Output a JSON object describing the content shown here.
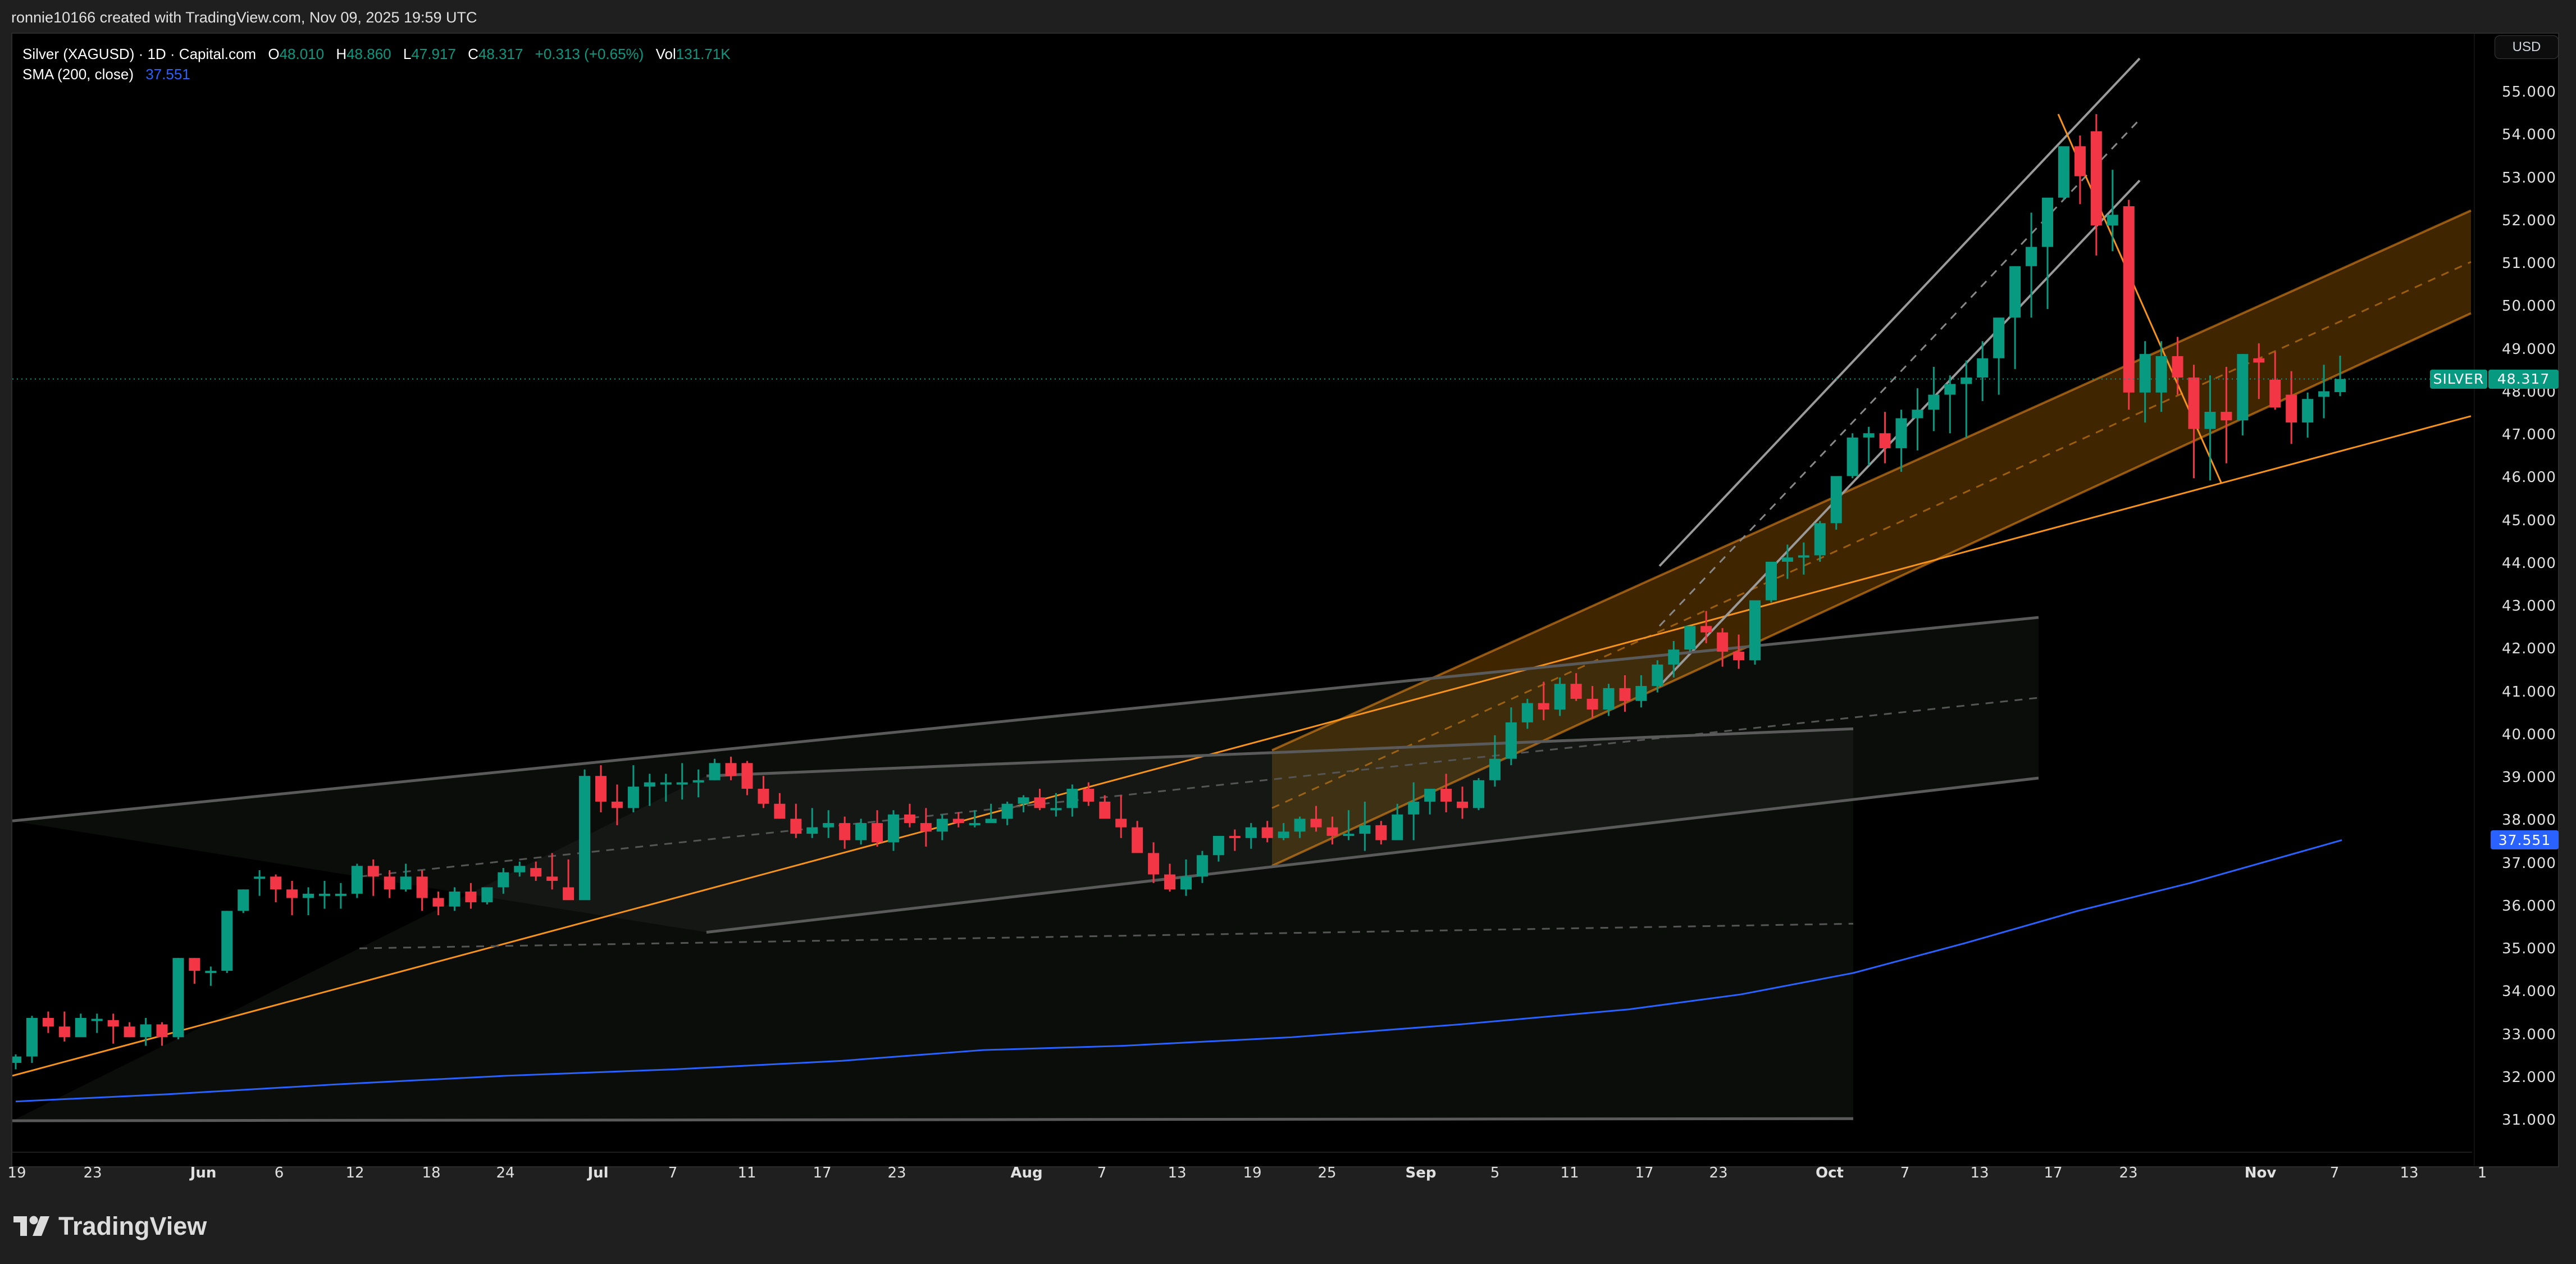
{
  "header": {
    "credit": "ronnie10166 created with TradingView.com, Nov 09, 2025 19:59 UTC"
  },
  "legend": {
    "symbol": "Silver (XAGUSD) · 1D · Capital.com",
    "open_label": "O",
    "open": "48.010",
    "high_label": "H",
    "high": "48.860",
    "low_label": "L",
    "low": "47.917",
    "close_label": "C",
    "close": "48.317",
    "change": "+0.313 (+0.65%)",
    "vol_label": "Vol",
    "vol": "131.71K",
    "sma_label": "SMA (200, close)",
    "sma_value": "37.551"
  },
  "price_axis": {
    "currency_button": "USD",
    "ticks": [
      "55.000",
      "54.000",
      "53.000",
      "52.000",
      "51.000",
      "50.000",
      "49.000",
      "48.000",
      "47.000",
      "46.000",
      "45.000",
      "44.000",
      "43.000",
      "42.000",
      "41.000",
      "40.000",
      "39.000",
      "38.000",
      "37.000",
      "36.000",
      "35.000",
      "34.000",
      "33.000",
      "32.000",
      "31.000"
    ],
    "last_price_tag": {
      "symbol": "SILVER",
      "value": "48.317",
      "color": "#089981"
    },
    "sma_tag": {
      "value": "37.551",
      "color": "#2962ff"
    }
  },
  "time_axis": {
    "labels": [
      {
        "text": "19",
        "x": 30,
        "month": false
      },
      {
        "text": "23",
        "x": 165,
        "month": false
      },
      {
        "text": "Jun",
        "x": 362,
        "month": true
      },
      {
        "text": "6",
        "x": 497,
        "month": false
      },
      {
        "text": "12",
        "x": 632,
        "month": false
      },
      {
        "text": "18",
        "x": 768,
        "month": false
      },
      {
        "text": "24",
        "x": 900,
        "month": false
      },
      {
        "text": "Jul",
        "x": 1065,
        "month": true
      },
      {
        "text": "7",
        "x": 1198,
        "month": false
      },
      {
        "text": "11",
        "x": 1330,
        "month": false
      },
      {
        "text": "17",
        "x": 1464,
        "month": false
      },
      {
        "text": "23",
        "x": 1597,
        "month": false
      },
      {
        "text": "Aug",
        "x": 1828,
        "month": true
      },
      {
        "text": "7",
        "x": 1962,
        "month": false
      },
      {
        "text": "13",
        "x": 2096,
        "month": false
      },
      {
        "text": "19",
        "x": 2230,
        "month": false
      },
      {
        "text": "25",
        "x": 2363,
        "month": false
      },
      {
        "text": "Sep",
        "x": 2530,
        "month": true
      },
      {
        "text": "5",
        "x": 2662,
        "month": false
      },
      {
        "text": "11",
        "x": 2795,
        "month": false
      },
      {
        "text": "17",
        "x": 2928,
        "month": false
      },
      {
        "text": "23",
        "x": 3060,
        "month": false
      },
      {
        "text": "Oct",
        "x": 3258,
        "month": true
      },
      {
        "text": "7",
        "x": 3392,
        "month": false
      },
      {
        "text": "13",
        "x": 3525,
        "month": false
      },
      {
        "text": "17",
        "x": 3656,
        "month": false
      },
      {
        "text": "23",
        "x": 3790,
        "month": false
      },
      {
        "text": "Nov",
        "x": 4025,
        "month": true
      },
      {
        "text": "7",
        "x": 4157,
        "month": false
      },
      {
        "text": "13",
        "x": 4290,
        "month": false
      },
      {
        "text": "1",
        "x": 4420,
        "month": false
      }
    ]
  },
  "colors": {
    "up": "#089981",
    "down": "#f23645",
    "sma": "#2962ff",
    "trend": "#f7931a",
    "channel_gray": "#6b6b6b",
    "orange_fill": "rgba(255,152,0,0.25)"
  },
  "footer": {
    "brand": "TradingView"
  },
  "chart_data": {
    "type": "candlestick",
    "title": "Silver (XAGUSD) · 1D · Capital.com",
    "xlabel": "",
    "ylabel": "USD",
    "ylim": [
      30.5,
      55.6
    ],
    "grid": false,
    "legend_position": "top-left",
    "first_date": "2025-05-19",
    "last_date": "2025-11-07",
    "ohlc": [
      [
        32.35,
        32.55,
        32.2,
        32.5
      ],
      [
        32.5,
        33.45,
        32.35,
        33.4
      ],
      [
        33.4,
        33.55,
        33.05,
        33.2
      ],
      [
        33.2,
        33.55,
        32.85,
        32.95
      ],
      [
        32.95,
        33.5,
        33.1,
        33.4
      ],
      [
        33.35,
        33.5,
        33.05,
        33.38
      ],
      [
        33.35,
        33.5,
        32.8,
        33.2
      ],
      [
        33.2,
        33.3,
        32.95,
        32.95
      ],
      [
        32.95,
        33.4,
        32.75,
        33.25
      ],
      [
        33.25,
        33.3,
        32.75,
        32.95
      ],
      [
        32.95,
        34.8,
        32.9,
        34.8
      ],
      [
        34.8,
        34.8,
        34.2,
        34.5
      ],
      [
        34.5,
        34.6,
        34.15,
        34.5
      ],
      [
        34.5,
        35.9,
        34.45,
        35.9
      ],
      [
        35.9,
        36.4,
        35.85,
        36.4
      ],
      [
        36.7,
        36.85,
        36.25,
        36.7
      ],
      [
        36.7,
        36.75,
        36.1,
        36.4
      ],
      [
        36.4,
        36.6,
        35.8,
        36.2
      ],
      [
        36.2,
        36.45,
        35.8,
        36.3
      ],
      [
        36.3,
        36.6,
        35.95,
        36.3
      ],
      [
        36.3,
        36.55,
        35.95,
        36.3
      ],
      [
        36.3,
        37.0,
        36.2,
        36.95
      ],
      [
        36.95,
        37.1,
        36.25,
        36.7
      ],
      [
        36.7,
        36.85,
        36.2,
        36.4
      ],
      [
        36.4,
        37.0,
        36.35,
        36.7
      ],
      [
        36.7,
        36.85,
        35.9,
        36.2
      ],
      [
        36.2,
        36.35,
        35.8,
        36.0
      ],
      [
        36.0,
        36.45,
        35.9,
        36.35
      ],
      [
        36.35,
        36.55,
        35.95,
        36.1
      ],
      [
        36.1,
        36.45,
        36.05,
        36.45
      ],
      [
        36.45,
        36.9,
        36.3,
        36.8
      ],
      [
        36.8,
        37.05,
        36.7,
        36.95
      ],
      [
        36.9,
        37.05,
        36.6,
        36.7
      ],
      [
        36.7,
        37.25,
        36.4,
        36.6
      ],
      [
        36.45,
        37.1,
        36.2,
        36.15
      ],
      [
        36.15,
        39.2,
        36.3,
        39.05
      ],
      [
        39.05,
        39.3,
        38.2,
        38.45
      ],
      [
        38.45,
        38.85,
        37.9,
        38.3
      ],
      [
        38.3,
        39.3,
        38.2,
        38.8
      ],
      [
        38.8,
        39.1,
        38.35,
        38.9
      ],
      [
        38.9,
        39.1,
        38.45,
        38.9
      ],
      [
        38.9,
        39.35,
        38.5,
        38.9
      ],
      [
        38.9,
        39.2,
        38.55,
        38.95
      ],
      [
        38.95,
        39.45,
        38.95,
        39.35
      ],
      [
        39.35,
        39.5,
        38.95,
        39.05
      ],
      [
        39.35,
        39.4,
        38.6,
        38.75
      ],
      [
        38.75,
        39.05,
        38.3,
        38.4
      ],
      [
        38.4,
        38.65,
        38.05,
        38.05
      ],
      [
        38.05,
        38.4,
        37.6,
        37.7
      ],
      [
        37.7,
        38.3,
        37.6,
        37.85
      ],
      [
        37.85,
        38.25,
        37.6,
        37.95
      ],
      [
        37.95,
        38.1,
        37.35,
        37.55
      ],
      [
        37.55,
        38.05,
        37.45,
        37.95
      ],
      [
        37.95,
        38.25,
        37.4,
        37.5
      ],
      [
        37.5,
        38.25,
        37.3,
        38.15
      ],
      [
        38.15,
        38.4,
        37.85,
        37.95
      ],
      [
        37.95,
        38.3,
        37.4,
        37.75
      ],
      [
        37.75,
        38.15,
        37.55,
        38.05
      ],
      [
        38.05,
        38.2,
        37.85,
        37.95
      ],
      [
        37.95,
        38.25,
        37.85,
        37.95
      ],
      [
        37.95,
        38.4,
        37.95,
        38.05
      ],
      [
        38.05,
        38.45,
        37.9,
        38.4
      ],
      [
        38.4,
        38.6,
        38.2,
        38.55
      ],
      [
        38.55,
        38.75,
        38.25,
        38.3
      ],
      [
        38.3,
        38.65,
        38.1,
        38.3
      ],
      [
        38.3,
        38.85,
        38.1,
        38.75
      ],
      [
        38.75,
        38.9,
        38.35,
        38.45
      ],
      [
        38.45,
        38.6,
        38.05,
        38.05
      ],
      [
        38.05,
        38.6,
        37.6,
        37.85
      ],
      [
        37.85,
        38.0,
        37.25,
        37.25
      ],
      [
        37.25,
        37.5,
        36.55,
        36.75
      ],
      [
        36.75,
        37.0,
        36.35,
        36.4
      ],
      [
        36.4,
        37.1,
        36.25,
        36.7
      ],
      [
        36.7,
        37.3,
        36.55,
        37.2
      ],
      [
        37.2,
        37.65,
        37.05,
        37.65
      ],
      [
        37.65,
        37.8,
        37.3,
        37.6
      ],
      [
        37.6,
        37.95,
        37.35,
        37.85
      ],
      [
        37.85,
        38.0,
        37.5,
        37.6
      ],
      [
        37.6,
        37.95,
        37.55,
        37.75
      ],
      [
        37.75,
        38.1,
        37.6,
        38.05
      ],
      [
        38.05,
        38.35,
        37.75,
        37.85
      ],
      [
        37.85,
        38.1,
        37.45,
        37.65
      ],
      [
        37.65,
        38.25,
        37.55,
        37.7
      ],
      [
        37.7,
        38.45,
        37.3,
        37.9
      ],
      [
        37.9,
        38.0,
        37.45,
        37.55
      ],
      [
        37.55,
        38.4,
        37.65,
        38.15
      ],
      [
        38.15,
        38.9,
        37.55,
        38.45
      ],
      [
        38.45,
        38.75,
        38.15,
        38.75
      ],
      [
        38.75,
        39.1,
        38.2,
        38.45
      ],
      [
        38.45,
        38.8,
        38.05,
        38.3
      ],
      [
        38.3,
        39.0,
        38.25,
        38.95
      ],
      [
        38.95,
        40.0,
        38.8,
        39.45
      ],
      [
        39.45,
        40.65,
        39.3,
        40.3
      ],
      [
        40.3,
        40.85,
        40.15,
        40.75
      ],
      [
        40.75,
        41.25,
        40.35,
        40.6
      ],
      [
        40.6,
        41.35,
        40.45,
        41.2
      ],
      [
        41.2,
        41.45,
        40.8,
        40.85
      ],
      [
        40.85,
        41.15,
        40.4,
        40.6
      ],
      [
        40.6,
        41.2,
        40.45,
        41.1
      ],
      [
        41.1,
        41.4,
        40.55,
        40.8
      ],
      [
        40.8,
        41.4,
        40.65,
        41.15
      ],
      [
        41.15,
        41.75,
        41.0,
        41.65
      ],
      [
        41.65,
        42.2,
        41.35,
        42.0
      ],
      [
        42.0,
        42.45,
        41.95,
        42.55
      ],
      [
        42.55,
        42.9,
        42.15,
        42.4
      ],
      [
        42.4,
        42.5,
        41.6,
        41.95
      ],
      [
        41.95,
        42.35,
        41.55,
        41.75
      ],
      [
        41.75,
        43.15,
        41.65,
        43.15
      ],
      [
        43.15,
        44.05,
        43.1,
        44.05
      ],
      [
        44.05,
        44.45,
        43.65,
        44.15
      ],
      [
        44.15,
        44.5,
        43.75,
        44.2
      ],
      [
        44.2,
        45.0,
        44.05,
        44.95
      ],
      [
        44.95,
        46.05,
        44.8,
        46.05
      ],
      [
        46.05,
        47.05,
        46.0,
        46.95
      ],
      [
        46.95,
        47.2,
        46.3,
        47.05
      ],
      [
        47.05,
        47.55,
        46.35,
        46.7
      ],
      [
        46.7,
        47.6,
        46.15,
        47.4
      ],
      [
        47.4,
        48.1,
        46.65,
        47.6
      ],
      [
        47.6,
        48.6,
        47.1,
        47.95
      ],
      [
        47.95,
        48.4,
        47.05,
        48.2
      ],
      [
        48.2,
        48.75,
        46.95,
        48.35
      ],
      [
        48.35,
        49.2,
        47.8,
        48.8
      ],
      [
        48.8,
        49.5,
        47.95,
        49.75
      ],
      [
        49.75,
        50.95,
        48.55,
        50.95
      ],
      [
        50.95,
        52.2,
        49.75,
        51.4
      ],
      [
        51.4,
        52.3,
        49.95,
        52.55
      ],
      [
        52.55,
        53.6,
        52.5,
        53.75
      ],
      [
        53.75,
        54.0,
        52.4,
        53.05
      ],
      [
        54.1,
        54.5,
        51.2,
        51.9
      ],
      [
        51.9,
        53.2,
        51.3,
        52.15
      ],
      [
        52.35,
        52.5,
        47.6,
        48.0
      ],
      [
        48.0,
        49.2,
        47.3,
        48.9
      ],
      [
        48.0,
        49.2,
        47.55,
        48.85
      ],
      [
        48.85,
        49.3,
        47.95,
        48.35
      ],
      [
        48.35,
        48.65,
        46.0,
        47.15
      ],
      [
        47.15,
        48.4,
        45.95,
        47.55
      ],
      [
        47.55,
        48.6,
        46.35,
        47.35
      ],
      [
        47.35,
        48.9,
        47.0,
        48.9
      ],
      [
        48.8,
        49.15,
        47.85,
        48.7
      ],
      [
        48.3,
        48.95,
        47.6,
        47.65
      ],
      [
        47.95,
        48.5,
        46.8,
        47.3
      ],
      [
        47.3,
        48.0,
        46.95,
        47.85
      ],
      [
        47.9,
        48.65,
        47.4,
        48.03
      ],
      [
        48.01,
        48.86,
        47.917,
        48.317
      ]
    ],
    "sma200": {
      "name": "SMA (200, close)",
      "points": [
        [
          28,
          31.45
        ],
        [
          300,
          31.62
        ],
        [
          600,
          31.85
        ],
        [
          900,
          32.05
        ],
        [
          1200,
          32.2
        ],
        [
          1500,
          32.4
        ],
        [
          1750,
          32.65
        ],
        [
          2000,
          32.75
        ],
        [
          2300,
          32.95
        ],
        [
          2600,
          33.25
        ],
        [
          2900,
          33.6
        ],
        [
          3100,
          33.95
        ],
        [
          3300,
          34.45
        ],
        [
          3500,
          35.15
        ],
        [
          3700,
          35.9
        ],
        [
          3900,
          36.55
        ],
        [
          4170,
          37.551
        ]
      ]
    },
    "drawings": [
      {
        "type": "trendline",
        "color": "orange",
        "from": [
          22,
          32.05
        ],
        "to": [
          4400,
          47.45
        ]
      },
      {
        "type": "parallel_channel",
        "color": "orange_filled",
        "upper": [
          [
            2265,
            39.65
          ],
          [
            4400,
            52.25
          ]
        ],
        "lower": [
          [
            2265,
            36.95
          ],
          [
            4400,
            49.85
          ]
        ]
      },
      {
        "type": "parallel_channel",
        "color": "gray",
        "upper": [
          [
            2955,
            43.95
          ],
          [
            3810,
            55.8
          ]
        ],
        "lower": [
          [
            2955,
            41.15
          ],
          [
            3810,
            52.95
          ]
        ]
      },
      {
        "type": "trendline",
        "color": "orange",
        "from": [
          3665,
          54.5
        ],
        "to": [
          3955,
          45.9
        ]
      },
      {
        "type": "parallel_channel",
        "color": "gray_filled",
        "upper": [
          [
            22,
            38.0
          ],
          [
            3630,
            42.75
          ]
        ],
        "lower": [
          [
            1258,
            35.4
          ],
          [
            3630,
            39.0
          ]
        ]
      },
      {
        "type": "parallel_channel",
        "color": "gray_filled",
        "upper": [
          [
            1258,
            39.05
          ],
          [
            3300,
            40.15
          ]
        ],
        "lower": [
          [
            22,
            31.0
          ],
          [
            3300,
            31.05
          ]
        ]
      }
    ],
    "last_price": 48.317,
    "sma_last": 37.551
  }
}
